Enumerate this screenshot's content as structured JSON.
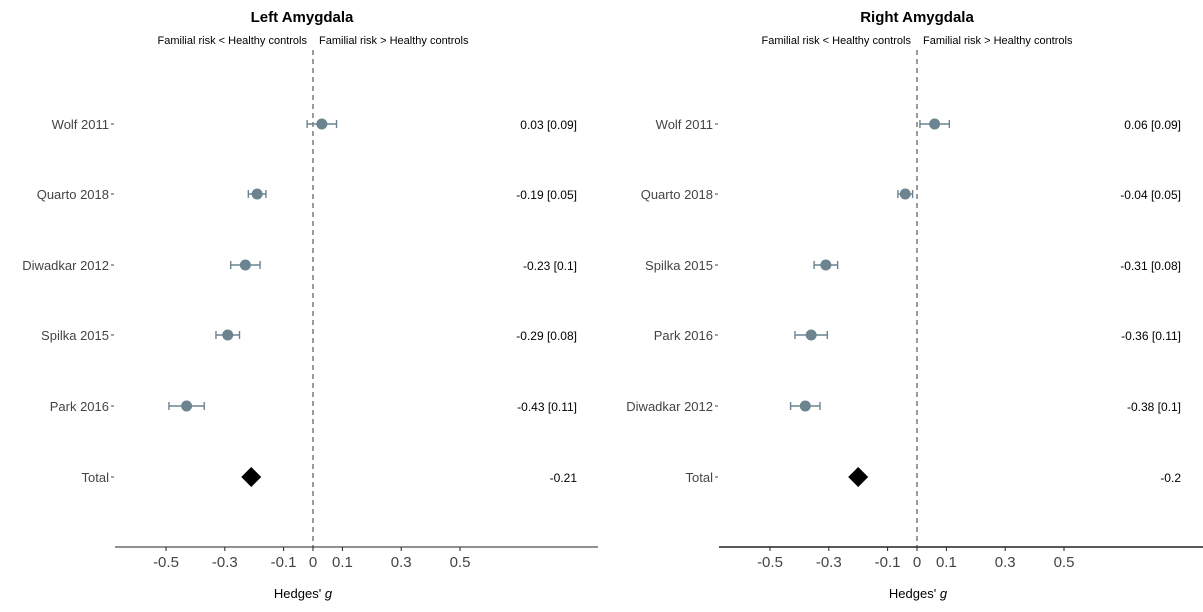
{
  "chart_data": [
    {
      "type": "forest",
      "title": "Left Amygdala",
      "direction_left": "Familial risk < Healthy controls",
      "direction_right": "Familial risk > Healthy controls",
      "xlabel": "Hedges' ",
      "xlabel_italic": "g",
      "xlim": [
        -0.68,
        0.98
      ],
      "xticks": [
        -0.5,
        -0.3,
        -0.1,
        0,
        0.1,
        0.3,
        0.5
      ],
      "xtick_labels": [
        "-0.5",
        "-0.3",
        "-0.1",
        "0",
        "0.1",
        "0.3",
        "0.5"
      ],
      "reference_line": 0,
      "studies": [
        {
          "label": "Wolf 2011",
          "estimate": 0.03,
          "lower": -0.02,
          "upper": 0.08,
          "text": "0.03 [0.09]"
        },
        {
          "label": "Quarto 2018",
          "estimate": -0.19,
          "lower": -0.22,
          "upper": -0.16,
          "text": "-0.19 [0.05]"
        },
        {
          "label": "Diwadkar 2012",
          "estimate": -0.23,
          "lower": -0.28,
          "upper": -0.18,
          "text": "-0.23 [0.1]"
        },
        {
          "label": "Spilka 2015",
          "estimate": -0.29,
          "lower": -0.33,
          "upper": -0.25,
          "text": "-0.29 [0.08]"
        },
        {
          "label": "Park 2016",
          "estimate": -0.43,
          "lower": -0.49,
          "upper": -0.37,
          "text": "-0.43 [0.11]"
        }
      ],
      "total": {
        "label": "Total",
        "estimate": -0.21,
        "text": "-0.21"
      }
    },
    {
      "type": "forest",
      "title": "Right Amygdala",
      "direction_left": "Familial risk < Healthy controls",
      "direction_right": "Familial risk > Healthy controls",
      "xlabel": "Hedges' ",
      "xlabel_italic": "g",
      "xlim": [
        -0.68,
        0.98
      ],
      "xticks": [
        -0.5,
        -0.3,
        -0.1,
        0,
        0.1,
        0.3,
        0.5
      ],
      "xtick_labels": [
        "-0.5",
        "-0.3",
        "-0.1",
        "0",
        "0.1",
        "0.3",
        "0.5"
      ],
      "reference_line": 0,
      "studies": [
        {
          "label": "Wolf 2011",
          "estimate": 0.06,
          "lower": 0.01,
          "upper": 0.11,
          "text": "0.06 [0.09]"
        },
        {
          "label": "Quarto 2018",
          "estimate": -0.04,
          "lower": -0.065,
          "upper": -0.015,
          "text": "-0.04 [0.05]"
        },
        {
          "label": "Spilka 2015",
          "estimate": -0.31,
          "lower": -0.35,
          "upper": -0.27,
          "text": "-0.31 [0.08]"
        },
        {
          "label": "Park 2016",
          "estimate": -0.36,
          "lower": -0.415,
          "upper": -0.305,
          "text": "-0.36 [0.11]"
        },
        {
          "label": "Diwadkar 2012",
          "estimate": -0.38,
          "lower": -0.43,
          "upper": -0.33,
          "text": "-0.38 [0.1]"
        }
      ],
      "total": {
        "label": "Total",
        "estimate": -0.2,
        "text": "-0.2"
      }
    }
  ],
  "colors": {
    "point": "#6b8490",
    "diamond": "#000000",
    "reference_line": "#7a7a7a",
    "axis": "#222222"
  }
}
